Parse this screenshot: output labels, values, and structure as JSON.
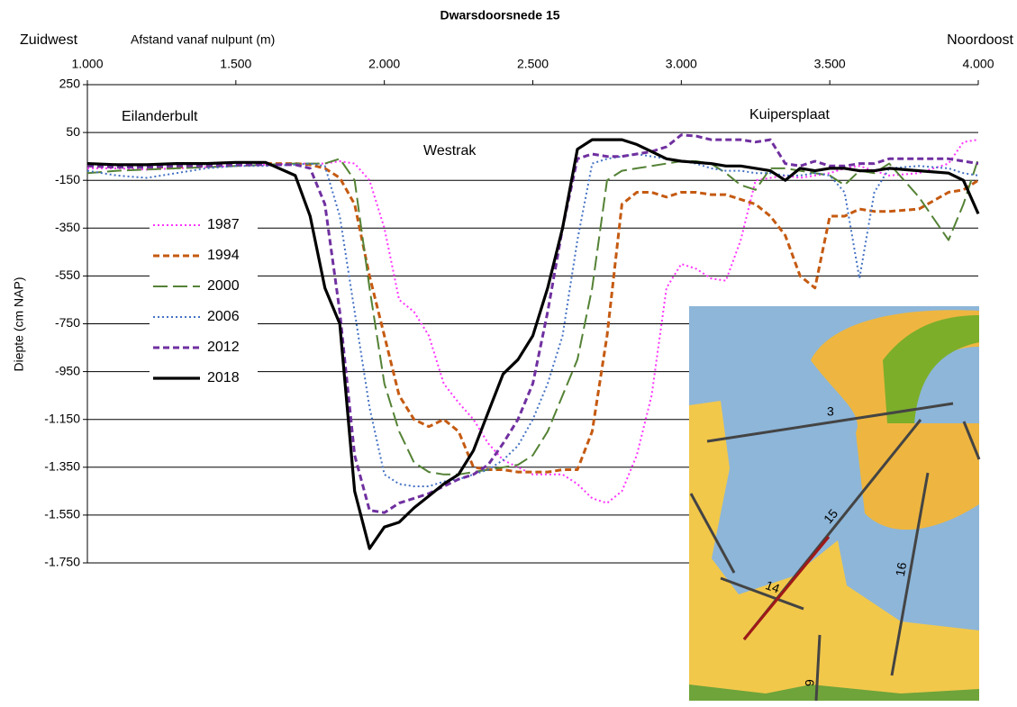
{
  "chart_data": {
    "type": "line",
    "title": "Dwarsdoorsnede 15",
    "x_label": "Afstand vanaf nulpunt  (m)",
    "y_label": "Diepte (cm NAP)",
    "annotations": [
      "Zuidwest",
      "Noordoost",
      "Eilanderbult",
      "Westrak",
      "Kuipersplaat"
    ],
    "map_labels": [
      "3",
      "14",
      "15",
      "16",
      "9"
    ],
    "xlim": [
      1000,
      4000
    ],
    "xticks": [
      {
        "value": 1000,
        "label": "1.000"
      },
      {
        "value": 1500,
        "label": "1.500"
      },
      {
        "value": 2000,
        "label": "2.000"
      },
      {
        "value": 2500,
        "label": "2.500"
      },
      {
        "value": 3000,
        "label": "3.000"
      },
      {
        "value": 3500,
        "label": "3.500"
      },
      {
        "value": 4000,
        "label": "4.000"
      }
    ],
    "ylim": [
      -1750,
      250
    ],
    "yticks": [
      250,
      50,
      -150,
      -350,
      -550,
      -750,
      -950,
      {
        "value": -1150,
        "label": "-1.150"
      },
      {
        "value": -1350,
        "label": "-1.350"
      },
      {
        "value": -1550,
        "label": "-1.550"
      },
      {
        "value": -1750,
        "label": "-1.750"
      }
    ],
    "grid": true,
    "x": [
      1000,
      1100,
      1200,
      1300,
      1400,
      1500,
      1600,
      1700,
      1750,
      1800,
      1850,
      1900,
      1950,
      2000,
      2050,
      2100,
      2150,
      2200,
      2250,
      2300,
      2350,
      2400,
      2450,
      2500,
      2550,
      2600,
      2650,
      2700,
      2750,
      2800,
      2850,
      2900,
      2950,
      3000,
      3050,
      3100,
      3150,
      3200,
      3250,
      3300,
      3350,
      3400,
      3450,
      3500,
      3550,
      3600,
      3650,
      3700,
      3800,
      3900,
      3950,
      4000
    ],
    "series": [
      {
        "name": "1987",
        "color": "#ff33ff",
        "dash": "dotted",
        "values": [
          -100,
          -100,
          -105,
          -100,
          -95,
          -90,
          -85,
          -80,
          -80,
          -80,
          -70,
          -80,
          -150,
          -350,
          -650,
          -700,
          -800,
          -1000,
          -1080,
          -1150,
          -1250,
          -1320,
          -1350,
          -1380,
          -1380,
          -1380,
          -1420,
          -1480,
          -1500,
          -1450,
          -1300,
          -1050,
          -600,
          -500,
          -520,
          -560,
          -570,
          -400,
          -150,
          -140,
          -130,
          -140,
          -130,
          -120,
          -100,
          -90,
          -110,
          -130,
          -120,
          -80,
          10,
          20
        ]
      },
      {
        "name": "1994",
        "color": "#c55a11",
        "dash": "dashed",
        "values": [
          -90,
          -95,
          -95,
          -95,
          -90,
          -85,
          -80,
          -80,
          -85,
          -100,
          -140,
          -250,
          -550,
          -800,
          -1050,
          -1150,
          -1180,
          -1150,
          -1200,
          -1350,
          -1360,
          -1360,
          -1370,
          -1370,
          -1370,
          -1360,
          -1360,
          -1200,
          -800,
          -250,
          -200,
          -200,
          -220,
          -200,
          -200,
          -210,
          -210,
          -230,
          -250,
          -300,
          -380,
          -550,
          -600,
          -300,
          -300,
          -270,
          -280,
          -280,
          -270,
          -200,
          -190,
          -150
        ]
      },
      {
        "name": "2000",
        "color": "#548235",
        "dash": "long",
        "values": [
          -120,
          -110,
          -105,
          -100,
          -95,
          -90,
          -85,
          -80,
          -80,
          -80,
          -60,
          -150,
          -600,
          -1000,
          -1200,
          -1330,
          -1370,
          -1380,
          -1380,
          -1370,
          -1360,
          -1350,
          -1340,
          -1300,
          -1200,
          -1050,
          -900,
          -600,
          -150,
          -110,
          -100,
          -90,
          -80,
          -70,
          -70,
          -80,
          -120,
          -170,
          -190,
          -100,
          -100,
          -110,
          -120,
          -130,
          -170,
          -110,
          -120,
          -80,
          -220,
          -400,
          -250,
          -60
        ]
      },
      {
        "name": "2006",
        "color": "#4472c4",
        "dash": "dotted",
        "values": [
          -110,
          -130,
          -140,
          -120,
          -100,
          -90,
          -90,
          -85,
          -80,
          -90,
          -300,
          -700,
          -1100,
          -1380,
          -1420,
          -1430,
          -1430,
          -1410,
          -1400,
          -1380,
          -1360,
          -1320,
          -1260,
          -1150,
          -1000,
          -800,
          -400,
          -80,
          -60,
          -50,
          -40,
          -50,
          -60,
          -70,
          -80,
          -100,
          -110,
          -110,
          -120,
          -120,
          -130,
          -130,
          -120,
          -130,
          -200,
          -560,
          -200,
          -100,
          -90,
          -100,
          -120,
          -130
        ]
      },
      {
        "name": "2012",
        "color": "#7030a0",
        "dash": "dashed",
        "values": [
          -90,
          -95,
          -95,
          -90,
          -90,
          -85,
          -85,
          -85,
          -100,
          -250,
          -700,
          -1300,
          -1530,
          -1540,
          -1500,
          -1480,
          -1460,
          -1430,
          -1400,
          -1380,
          -1340,
          -1250,
          -1150,
          -1000,
          -700,
          -350,
          -60,
          -40,
          -50,
          -50,
          -40,
          -30,
          -10,
          40,
          35,
          20,
          20,
          20,
          10,
          20,
          -80,
          -90,
          -70,
          -90,
          -90,
          -80,
          -80,
          -60,
          -60,
          -60,
          -70,
          -80
        ]
      },
      {
        "name": "2018",
        "color": "#000000",
        "dash": "solid",
        "values": [
          -80,
          -85,
          -85,
          -80,
          -80,
          -75,
          -75,
          -130,
          -300,
          -600,
          -750,
          -1450,
          -1690,
          -1600,
          -1580,
          -1520,
          -1470,
          -1420,
          -1380,
          -1280,
          -1120,
          -960,
          -900,
          -800,
          -600,
          -350,
          -20,
          20,
          20,
          20,
          0,
          -30,
          -60,
          -70,
          -75,
          -80,
          -90,
          -90,
          -100,
          -110,
          -150,
          -100,
          -110,
          -100,
          -100,
          -110,
          -110,
          -100,
          -110,
          -120,
          -150,
          -290
        ]
      }
    ]
  }
}
